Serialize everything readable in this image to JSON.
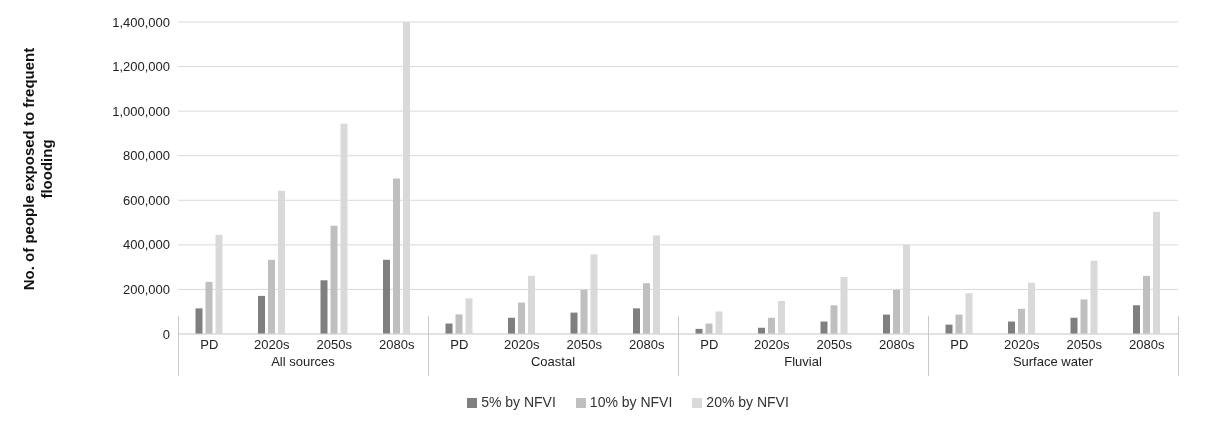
{
  "chart_data": {
    "type": "bar",
    "ylabel": "No. of people exposed to frequent flooding",
    "categories": [
      "PD",
      "2020s",
      "2050s",
      "2080s",
      "PD",
      "2020s",
      "2050s",
      "2080s",
      "PD",
      "2020s",
      "2050s",
      "2080s",
      "PD",
      "2020s",
      "2050s",
      "2080s"
    ],
    "annotations": [
      "All sources",
      "Coastal",
      "Fluvial",
      "Surface water"
    ],
    "series": [
      {
        "name": "5% by NFVI",
        "color": "#7f7f7f",
        "values": [
          115000,
          171000,
          241000,
          333000,
          47000,
          73000,
          96000,
          115000,
          23000,
          28000,
          56000,
          87000,
          42000,
          56000,
          73000,
          129000
        ]
      },
      {
        "name": "10% by NFVI",
        "color": "#bfbfbf",
        "values": [
          234000,
          333000,
          486000,
          698000,
          88000,
          141000,
          198000,
          228000,
          47000,
          73000,
          129000,
          198000,
          87000,
          113000,
          155000,
          261000
        ]
      },
      {
        "name": "20% by NFVI",
        "color": "#d9d9d9",
        "values": [
          445000,
          643000,
          943000,
          1400000,
          160000,
          261000,
          357000,
          442000,
          101000,
          148000,
          256000,
          400000,
          183000,
          230000,
          329000,
          548000
        ]
      }
    ],
    "ylim": [
      0,
      1400000
    ],
    "yticks": [
      0,
      {
        "value": 200000,
        "label": "200,000"
      },
      {
        "value": 400000,
        "label": "400,000"
      },
      {
        "value": 600000,
        "label": "600,000"
      },
      {
        "value": 800000,
        "label": "800,000"
      },
      {
        "value": 1000000,
        "label": "1,000,000"
      },
      {
        "value": 1200000,
        "label": "1,200,000"
      },
      {
        "value": 1400000,
        "label": "1,400,000"
      }
    ],
    "grid": "y",
    "legend": "bottom"
  }
}
